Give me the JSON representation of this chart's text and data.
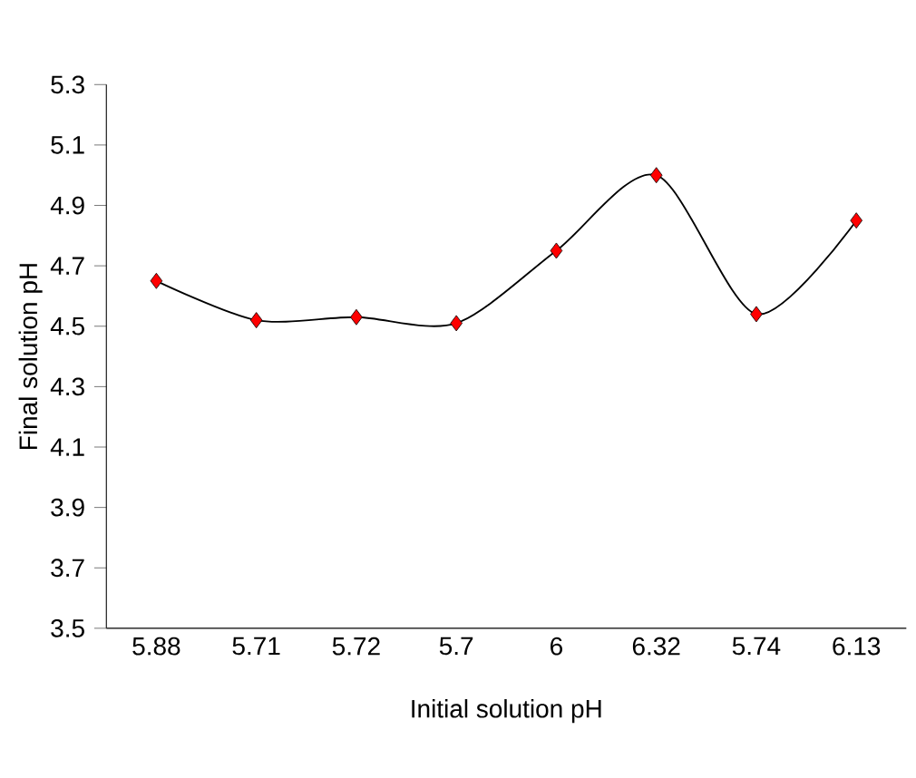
{
  "chart_data": {
    "type": "line",
    "xlabel": "Initial solution pH",
    "ylabel": "Final solution pH",
    "categories": [
      "5.88",
      "5.71",
      "5.72",
      "5.7",
      "6",
      "6.32",
      "5.74",
      "6.13"
    ],
    "series": [
      {
        "color": "#000000",
        "colors": [
          "#ff0000",
          "#ff0000",
          "#ff0000",
          "#ff0000",
          "#ff0000",
          "#ff0000",
          "#ff0000",
          "#ff0000"
        ],
        "values": [
          4.65,
          4.52,
          4.53,
          4.51,
          4.75,
          5.0,
          4.54,
          4.85
        ]
      }
    ],
    "ylim": [
      3.5,
      5.3
    ],
    "yticks": [
      3.5,
      3.7,
      3.9,
      4.1,
      4.3,
      4.5,
      4.7,
      4.9,
      5.1,
      5.3
    ],
    "marker": "diamond",
    "line_style": "solid",
    "grid": false
  }
}
